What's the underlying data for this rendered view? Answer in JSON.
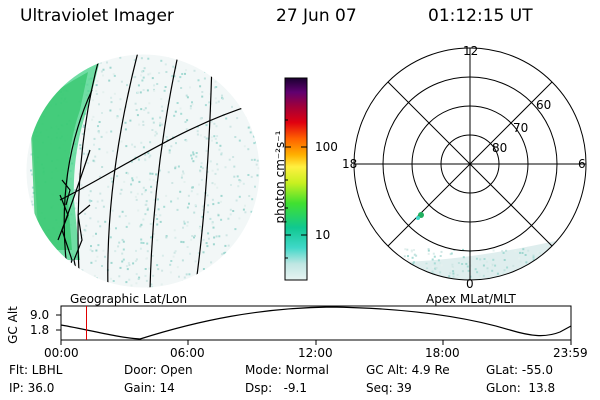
{
  "header": {
    "instrument": "Ultraviolet Imager",
    "date": "27 Jun 07",
    "time": "01:12:15 UT"
  },
  "colorbar": {
    "label": "photon cm⁻²s⁻¹",
    "ticks": [
      "100",
      "10"
    ]
  },
  "left_panel": {
    "caption": "Geographic Lat/Lon"
  },
  "polar_panel": {
    "caption": "Apex MLat/MLT",
    "mlt_labels": {
      "top": "12",
      "left": "18",
      "right": "6",
      "bottom": "0"
    },
    "lat_labels": [
      "60",
      "70",
      "80"
    ]
  },
  "altitude_plot": {
    "ylabel": "GC Alt",
    "yticks": [
      "9.0",
      "1.8"
    ],
    "xticks": [
      "00:00",
      "06:00",
      "12:00",
      "18:00",
      "23:59"
    ],
    "current_time_fraction": 0.05
  },
  "info": {
    "flt": "Flt: LBHL",
    "door": "Door: Open",
    "mode": "Mode: Normal",
    "gc_alt": "GC Alt: 4.9 Re",
    "glat": "GLat: -55.0",
    "ip": "IP: 36.0",
    "gain": "Gain: 14",
    "dsp": "Dsp:   -9.1",
    "seq": "Seq: 39",
    "glon": "GLon:  13.8"
  }
}
